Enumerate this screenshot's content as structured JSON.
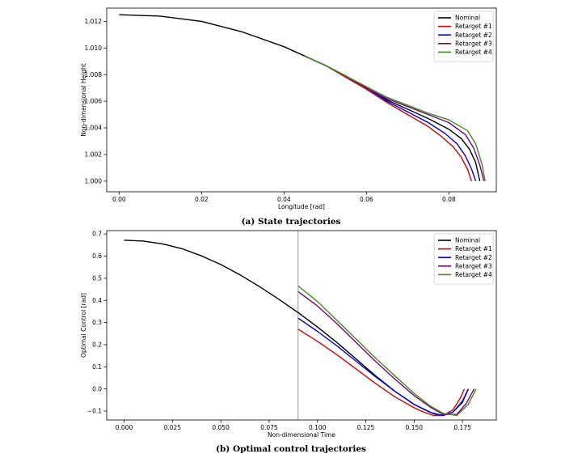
{
  "captions": {
    "a": "(a) State trajectories",
    "b": "(b) Optimal control trajectories"
  },
  "colors": {
    "Nominal": "#000000",
    "Retarget #1": "#d40000",
    "Retarget #2": "#0000e6",
    "Retarget #3": "#7a007a",
    "Retarget #4": "#3d8f1f",
    "vline": "#999999"
  },
  "chart_data": [
    {
      "type": "line",
      "title": "",
      "xlabel": "Longitude [rad]",
      "ylabel": "Non-dimensional Height",
      "xlim": [
        -0.003,
        0.0915
      ],
      "ylim": [
        0.9992,
        1.013
      ],
      "xticks": [
        0.0,
        0.02,
        0.04,
        0.06,
        0.08
      ],
      "xtick_labels": [
        "0.00",
        "0.02",
        "0.04",
        "0.06",
        "0.08"
      ],
      "yticks": [
        1.0,
        1.002,
        1.004,
        1.006,
        1.008,
        1.01,
        1.012
      ],
      "ytick_labels": [
        "1.000",
        "1.002",
        "1.004",
        "1.006",
        "1.008",
        "1.010",
        "1.012"
      ],
      "legend": "top-right",
      "grid": false,
      "series": [
        {
          "name": "Nominal",
          "x": [
            0.0,
            0.01,
            0.02,
            0.03,
            0.04,
            0.045,
            0.05,
            0.055,
            0.06,
            0.065,
            0.07,
            0.075,
            0.08,
            0.083,
            0.085,
            0.0865,
            0.0875
          ],
          "y": [
            1.0125,
            1.0124,
            1.012,
            1.0112,
            1.0101,
            1.0094,
            1.0087,
            1.0079,
            1.007,
            1.0061,
            1.0054,
            1.0047,
            1.0039,
            1.0032,
            1.0024,
            1.0014,
            1.0
          ]
        },
        {
          "name": "Retarget #1",
          "x": [
            0.045,
            0.05,
            0.055,
            0.06,
            0.065,
            0.07,
            0.075,
            0.078,
            0.081,
            0.083,
            0.0845,
            0.0855
          ],
          "y": [
            1.0094,
            1.0087,
            1.0078,
            1.0069,
            1.0059,
            1.005,
            1.0041,
            1.0034,
            1.0026,
            1.0018,
            1.0009,
            1.0
          ]
        },
        {
          "name": "Retarget #2",
          "x": [
            0.045,
            0.05,
            0.055,
            0.06,
            0.065,
            0.07,
            0.075,
            0.079,
            0.082,
            0.084,
            0.0855,
            0.0865
          ],
          "y": [
            1.0094,
            1.0087,
            1.0079,
            1.007,
            1.006,
            1.0052,
            1.0044,
            1.0036,
            1.0028,
            1.0019,
            1.0009,
            1.0
          ]
        },
        {
          "name": "Retarget #3",
          "x": [
            0.045,
            0.05,
            0.055,
            0.06,
            0.065,
            0.07,
            0.075,
            0.08,
            0.084,
            0.086,
            0.0875,
            0.0885
          ],
          "y": [
            1.0094,
            1.0087,
            1.0079,
            1.007,
            1.0062,
            1.0056,
            1.005,
            1.0044,
            1.0035,
            1.0025,
            1.0012,
            1.0
          ]
        },
        {
          "name": "Retarget #4",
          "x": [
            0.045,
            0.05,
            0.055,
            0.06,
            0.065,
            0.07,
            0.075,
            0.08,
            0.0845,
            0.0865,
            0.088,
            0.0888
          ],
          "y": [
            1.0094,
            1.0087,
            1.0079,
            1.0071,
            1.0063,
            1.0057,
            1.0051,
            1.0046,
            1.0038,
            1.0028,
            1.0013,
            1.0
          ]
        }
      ]
    },
    {
      "type": "line",
      "title": "",
      "xlabel": "Non-dimensional Time",
      "ylabel": "Optimal Control [rad]",
      "xlim": [
        -0.009,
        0.1925
      ],
      "ylim": [
        -0.14,
        0.715
      ],
      "xticks": [
        0.0,
        0.025,
        0.05,
        0.075,
        0.1,
        0.125,
        0.15,
        0.175
      ],
      "xtick_labels": [
        "0.000",
        "0.025",
        "0.050",
        "0.075",
        "0.100",
        "0.125",
        "0.150",
        "0.175"
      ],
      "yticks": [
        -0.1,
        0.0,
        0.1,
        0.2,
        0.3,
        0.4,
        0.5,
        0.6,
        0.7
      ],
      "ytick_labels": [
        "−0.1",
        "0.0",
        "0.1",
        "0.2",
        "0.3",
        "0.4",
        "0.5",
        "0.6",
        "0.7"
      ],
      "vline_x": 0.09,
      "legend": "top-right",
      "grid": false,
      "series": [
        {
          "name": "Nominal",
          "x": [
            0.0,
            0.01,
            0.02,
            0.03,
            0.04,
            0.05,
            0.06,
            0.07,
            0.08,
            0.09,
            0.1,
            0.11,
            0.12,
            0.13,
            0.14,
            0.15,
            0.16,
            0.165,
            0.17,
            0.175,
            0.178
          ],
          "y": [
            0.672,
            0.668,
            0.655,
            0.633,
            0.601,
            0.562,
            0.515,
            0.462,
            0.405,
            0.345,
            0.28,
            0.21,
            0.135,
            0.06,
            -0.01,
            -0.07,
            -0.112,
            -0.12,
            -0.105,
            -0.06,
            0.0
          ]
        },
        {
          "name": "Retarget #1",
          "x": [
            0.09,
            0.1,
            0.11,
            0.12,
            0.13,
            0.14,
            0.15,
            0.155,
            0.16,
            0.165,
            0.17,
            0.174,
            0.176
          ],
          "y": [
            0.27,
            0.215,
            0.155,
            0.09,
            0.025,
            -0.035,
            -0.085,
            -0.105,
            -0.12,
            -0.12,
            -0.095,
            -0.04,
            0.0
          ]
        },
        {
          "name": "Retarget #2",
          "x": [
            0.09,
            0.1,
            0.11,
            0.12,
            0.13,
            0.14,
            0.15,
            0.158,
            0.165,
            0.17,
            0.175,
            0.178
          ],
          "y": [
            0.32,
            0.26,
            0.195,
            0.125,
            0.055,
            -0.01,
            -0.07,
            -0.105,
            -0.12,
            -0.105,
            -0.055,
            0.0
          ]
        },
        {
          "name": "Retarget #3",
          "x": [
            0.09,
            0.1,
            0.11,
            0.12,
            0.13,
            0.14,
            0.15,
            0.158,
            0.165,
            0.172,
            0.177,
            0.181
          ],
          "y": [
            0.44,
            0.375,
            0.295,
            0.21,
            0.125,
            0.045,
            -0.03,
            -0.08,
            -0.115,
            -0.115,
            -0.065,
            0.0
          ]
        },
        {
          "name": "Retarget #4",
          "x": [
            0.09,
            0.1,
            0.11,
            0.12,
            0.13,
            0.14,
            0.15,
            0.158,
            0.165,
            0.172,
            0.178,
            0.182
          ],
          "y": [
            0.465,
            0.395,
            0.31,
            0.225,
            0.14,
            0.06,
            -0.02,
            -0.075,
            -0.11,
            -0.12,
            -0.07,
            0.0
          ]
        }
      ]
    }
  ]
}
